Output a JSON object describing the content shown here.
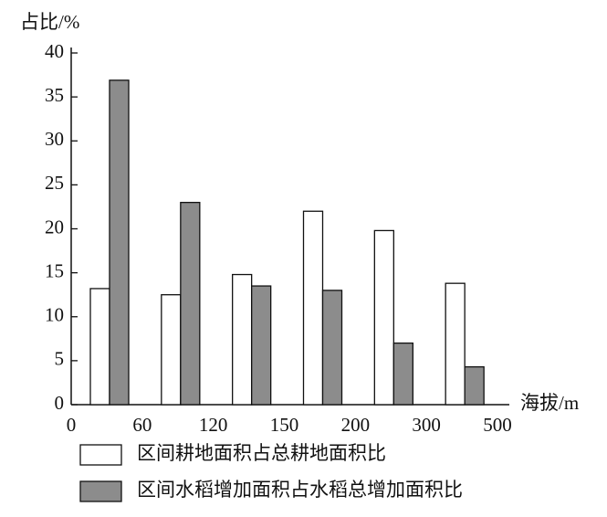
{
  "chart_data": {
    "type": "bar",
    "y_label": "占比/%",
    "x_label": "海拔/m",
    "categories": [
      null,
      null,
      null,
      null,
      null,
      null
    ],
    "x_edge_labels": [
      0,
      60,
      120,
      150,
      200,
      300,
      500
    ],
    "series": [
      {
        "name": "区间耕地面积占总耕地面积比",
        "color": "#ffffff",
        "values": [
          13.2,
          12.5,
          14.8,
          22,
          19.8,
          13.8
        ]
      },
      {
        "name": "区间水稻增加面积占水稻总增加面积比",
        "color": "#8c8c8c",
        "values": [
          36.9,
          23,
          13.5,
          13,
          7,
          4.3
        ]
      }
    ],
    "ylim": [
      0,
      40
    ],
    "yticks": [
      0,
      5,
      10,
      15,
      20,
      25,
      30,
      35,
      40
    ],
    "grid": false
  }
}
